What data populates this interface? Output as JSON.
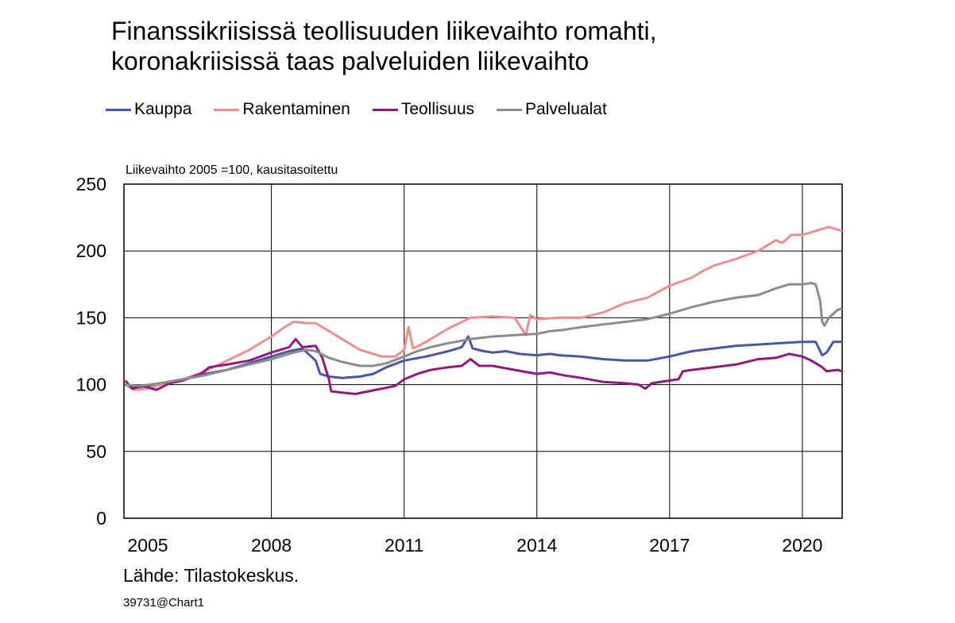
{
  "chart_data": {
    "type": "line",
    "title_lines": [
      "Finanssikriisissä teollisuuden liikevaihto romahti,",
      "koronakriisissä taas palveluiden liikevaihto"
    ],
    "ylabel": "Liikevaihto 2005 =100, kausitasoitettu",
    "source": "Lähde: Tilastokeskus.",
    "chart_id": "39731@Chart1",
    "ylim": [
      0,
      250
    ],
    "yticks": [
      0,
      50,
      100,
      150,
      200,
      250
    ],
    "xlim": [
      2004.667,
      2020.9
    ],
    "xticks": [
      {
        "value": 2005,
        "label": "2005"
      },
      {
        "value": 2008,
        "label": "2008"
      },
      {
        "value": 2011,
        "label": "2011"
      },
      {
        "value": 2014,
        "label": "2014"
      },
      {
        "value": 2017,
        "label": "2017"
      },
      {
        "value": 2020,
        "label": "2020"
      }
    ],
    "grid": true,
    "legend_position": "top",
    "series": [
      {
        "name": "Kauppa",
        "color": "#4a56a1",
        "points": [
          [
            2004.7,
            100
          ],
          [
            2005.0,
            98
          ],
          [
            2005.5,
            101
          ],
          [
            2006.0,
            104
          ],
          [
            2006.5,
            108
          ],
          [
            2007.0,
            111
          ],
          [
            2007.5,
            116
          ],
          [
            2008.0,
            121
          ],
          [
            2008.4,
            125
          ],
          [
            2008.7,
            127
          ],
          [
            2009.0,
            118
          ],
          [
            2009.1,
            108
          ],
          [
            2009.3,
            106
          ],
          [
            2009.6,
            105
          ],
          [
            2010.0,
            106
          ],
          [
            2010.3,
            108
          ],
          [
            2010.6,
            113
          ],
          [
            2011.0,
            118
          ],
          [
            2011.5,
            121
          ],
          [
            2012.0,
            125
          ],
          [
            2012.3,
            128
          ],
          [
            2012.45,
            136
          ],
          [
            2012.55,
            127
          ],
          [
            2012.8,
            125
          ],
          [
            2013.0,
            124
          ],
          [
            2013.3,
            125
          ],
          [
            2013.6,
            123
          ],
          [
            2014.0,
            122
          ],
          [
            2014.3,
            123
          ],
          [
            2014.5,
            122
          ],
          [
            2015.0,
            121
          ],
          [
            2015.5,
            119
          ],
          [
            2016.0,
            118
          ],
          [
            2016.5,
            118
          ],
          [
            2017.0,
            121
          ],
          [
            2017.5,
            125
          ],
          [
            2018.0,
            127
          ],
          [
            2018.5,
            129
          ],
          [
            2019.0,
            130
          ],
          [
            2019.5,
            131
          ],
          [
            2020.0,
            132
          ],
          [
            2020.3,
            132
          ],
          [
            2020.45,
            122
          ],
          [
            2020.55,
            124
          ],
          [
            2020.7,
            132
          ],
          [
            2020.9,
            132
          ]
        ]
      },
      {
        "name": "Rakentaminen",
        "color": "#ec8f94",
        "points": [
          [
            2004.7,
            100
          ],
          [
            2004.9,
            96
          ],
          [
            2005.2,
            97
          ],
          [
            2005.6,
            101
          ],
          [
            2006.0,
            104
          ],
          [
            2006.5,
            110
          ],
          [
            2007.0,
            118
          ],
          [
            2007.5,
            126
          ],
          [
            2008.0,
            136
          ],
          [
            2008.3,
            143
          ],
          [
            2008.5,
            147
          ],
          [
            2008.8,
            146
          ],
          [
            2009.0,
            146
          ],
          [
            2009.3,
            140
          ],
          [
            2009.6,
            134
          ],
          [
            2010.0,
            126
          ],
          [
            2010.5,
            121
          ],
          [
            2010.8,
            121
          ],
          [
            2011.0,
            126
          ],
          [
            2011.1,
            143
          ],
          [
            2011.2,
            127
          ],
          [
            2011.5,
            132
          ],
          [
            2012.0,
            142
          ],
          [
            2012.5,
            150
          ],
          [
            2013.0,
            151
          ],
          [
            2013.5,
            150
          ],
          [
            2013.75,
            137
          ],
          [
            2013.85,
            152
          ],
          [
            2014.0,
            149
          ],
          [
            2014.5,
            150
          ],
          [
            2015.0,
            150
          ],
          [
            2015.5,
            154
          ],
          [
            2016.0,
            161
          ],
          [
            2016.5,
            165
          ],
          [
            2017.0,
            174
          ],
          [
            2017.5,
            180
          ],
          [
            2017.75,
            185
          ],
          [
            2018.0,
            189
          ],
          [
            2018.5,
            194
          ],
          [
            2019.0,
            200
          ],
          [
            2019.4,
            208
          ],
          [
            2019.55,
            206
          ],
          [
            2019.75,
            212
          ],
          [
            2020.0,
            212
          ],
          [
            2020.4,
            216
          ],
          [
            2020.6,
            218
          ],
          [
            2020.8,
            216
          ],
          [
            2020.9,
            215
          ]
        ]
      },
      {
        "name": "Teollisuus",
        "color": "#8e1a7a",
        "points": [
          [
            2004.7,
            103
          ],
          [
            2004.85,
            97
          ],
          [
            2005.1,
            99
          ],
          [
            2005.4,
            96
          ],
          [
            2005.7,
            101
          ],
          [
            2006.0,
            103
          ],
          [
            2006.4,
            108
          ],
          [
            2006.6,
            113
          ],
          [
            2007.0,
            115
          ],
          [
            2007.5,
            118
          ],
          [
            2008.0,
            124
          ],
          [
            2008.4,
            128
          ],
          [
            2008.55,
            134
          ],
          [
            2008.7,
            128
          ],
          [
            2009.0,
            129
          ],
          [
            2009.15,
            120
          ],
          [
            2009.3,
            104
          ],
          [
            2009.35,
            95
          ],
          [
            2009.6,
            94
          ],
          [
            2009.9,
            93
          ],
          [
            2010.2,
            95
          ],
          [
            2010.5,
            97
          ],
          [
            2010.8,
            99
          ],
          [
            2011.0,
            104
          ],
          [
            2011.3,
            108
          ],
          [
            2011.6,
            111
          ],
          [
            2012.0,
            113
          ],
          [
            2012.3,
            114
          ],
          [
            2012.5,
            119
          ],
          [
            2012.7,
            114
          ],
          [
            2013.0,
            114
          ],
          [
            2013.5,
            111
          ],
          [
            2014.0,
            108
          ],
          [
            2014.3,
            109
          ],
          [
            2014.6,
            107
          ],
          [
            2015.0,
            105
          ],
          [
            2015.5,
            102
          ],
          [
            2016.0,
            101
          ],
          [
            2016.3,
            100
          ],
          [
            2016.45,
            97
          ],
          [
            2016.6,
            101
          ],
          [
            2017.0,
            103
          ],
          [
            2017.2,
            104
          ],
          [
            2017.3,
            110
          ],
          [
            2017.5,
            111
          ],
          [
            2018.0,
            113
          ],
          [
            2018.5,
            115
          ],
          [
            2019.0,
            119
          ],
          [
            2019.4,
            120
          ],
          [
            2019.7,
            123
          ],
          [
            2020.0,
            121
          ],
          [
            2020.2,
            118
          ],
          [
            2020.45,
            113
          ],
          [
            2020.55,
            110
          ],
          [
            2020.8,
            111
          ],
          [
            2020.9,
            110
          ]
        ]
      },
      {
        "name": "Palvelualat",
        "color": "#8c8c8c",
        "points": [
          [
            2004.7,
            100
          ],
          [
            2005.0,
            99
          ],
          [
            2005.5,
            101
          ],
          [
            2006.0,
            104
          ],
          [
            2006.5,
            107
          ],
          [
            2007.0,
            111
          ],
          [
            2007.5,
            115
          ],
          [
            2008.0,
            119
          ],
          [
            2008.5,
            124
          ],
          [
            2008.8,
            126
          ],
          [
            2009.0,
            125
          ],
          [
            2009.3,
            120
          ],
          [
            2009.6,
            117
          ],
          [
            2010.0,
            114
          ],
          [
            2010.3,
            114
          ],
          [
            2010.6,
            116
          ],
          [
            2011.0,
            121
          ],
          [
            2011.3,
            125
          ],
          [
            2011.6,
            128
          ],
          [
            2012.0,
            131
          ],
          [
            2012.5,
            134
          ],
          [
            2013.0,
            136
          ],
          [
            2013.5,
            137
          ],
          [
            2014.0,
            138
          ],
          [
            2014.3,
            140
          ],
          [
            2014.6,
            141
          ],
          [
            2015.0,
            143
          ],
          [
            2015.5,
            145
          ],
          [
            2016.0,
            147
          ],
          [
            2016.5,
            149
          ],
          [
            2017.0,
            153
          ],
          [
            2017.5,
            158
          ],
          [
            2018.0,
            162
          ],
          [
            2018.5,
            165
          ],
          [
            2019.0,
            167
          ],
          [
            2019.4,
            172
          ],
          [
            2019.7,
            175
          ],
          [
            2020.0,
            175
          ],
          [
            2020.2,
            176
          ],
          [
            2020.3,
            175
          ],
          [
            2020.4,
            163
          ],
          [
            2020.45,
            147
          ],
          [
            2020.5,
            144
          ],
          [
            2020.6,
            150
          ],
          [
            2020.8,
            156
          ],
          [
            2020.9,
            157
          ]
        ]
      }
    ]
  }
}
